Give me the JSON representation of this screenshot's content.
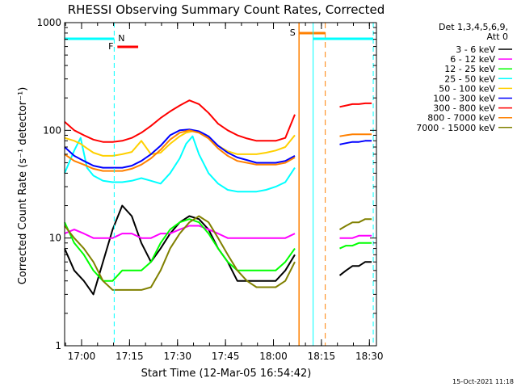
{
  "chart_data": {
    "type": "line",
    "title": "RHESSI Observing Summary Count Rates, Corrected",
    "xlabel": "Start Time (12-Mar-05 16:54:42)",
    "ylabel": "Corrected Count Rate (s⁻¹ detector⁻¹)",
    "yscale": "log",
    "ylim": [
      1,
      1000
    ],
    "ytick_labels": [
      "1",
      "10",
      "100",
      "1000"
    ],
    "xlim_minutes_from_start": [
      0,
      97.5
    ],
    "xtick_labels": [
      "17:00",
      "17:15",
      "17:30",
      "17:45",
      "18:00",
      "18:15",
      "18:30"
    ],
    "legend_header": [
      "Det 1,3,4,5,6,9,",
      "Att 0"
    ],
    "legend_position": "right",
    "footer_date": "15-Oct-2021 11:18",
    "markers": [
      {
        "label": "N",
        "kind": "night",
        "color": "#00ffff"
      },
      {
        "label": "F",
        "kind": "flare",
        "color": "#ff0000"
      },
      {
        "label": "S",
        "kind": "saa",
        "color": "#ff8000"
      }
    ],
    "series": [
      {
        "name": "3 - 6 keV",
        "color": "#000000",
        "t": [
          0,
          3,
          6,
          9,
          12,
          15,
          18,
          21,
          24,
          27,
          30,
          33,
          36,
          39,
          42,
          45,
          48,
          51,
          54,
          57,
          60,
          63,
          66,
          69,
          72,
          86,
          88,
          90,
          92,
          94,
          96
        ],
        "y": [
          8,
          5,
          4,
          3,
          6,
          12,
          20,
          16,
          9,
          6,
          8,
          11,
          14,
          16,
          15,
          12,
          8,
          6,
          4,
          4,
          4,
          4,
          4,
          5,
          7,
          4.5,
          5,
          5.5,
          5.5,
          6,
          6
        ]
      },
      {
        "name": "6 - 12 keV",
        "color": "#ff00ff",
        "t": [
          0,
          3,
          6,
          9,
          12,
          15,
          18,
          21,
          24,
          27,
          30,
          33,
          36,
          39,
          42,
          45,
          48,
          51,
          54,
          57,
          60,
          63,
          66,
          69,
          72,
          86,
          88,
          90,
          92,
          94,
          96
        ],
        "y": [
          11,
          12,
          11,
          10,
          10,
          10,
          11,
          11,
          10,
          10,
          11,
          11,
          12,
          13,
          13,
          12,
          11,
          10,
          10,
          10,
          10,
          10,
          10,
          10,
          11,
          10,
          10,
          10,
          10.5,
          10.5,
          10.5
        ]
      },
      {
        "name": "12 - 25 keV",
        "color": "#00ff00",
        "t": [
          0,
          3,
          6,
          9,
          12,
          15,
          18,
          21,
          24,
          27,
          30,
          33,
          36,
          39,
          42,
          45,
          48,
          51,
          54,
          57,
          60,
          63,
          66,
          69,
          72,
          86,
          88,
          90,
          92,
          94,
          96
        ],
        "y": [
          14,
          9,
          7,
          5,
          4,
          4,
          5,
          5,
          5,
          6,
          9,
          12,
          14,
          15,
          14,
          11,
          8,
          6,
          5,
          5,
          5,
          5,
          5,
          6,
          8,
          8,
          8.5,
          8.5,
          9,
          9,
          9
        ]
      },
      {
        "name": "25 - 50 keV",
        "color": "#00ffff",
        "t": [
          0,
          3,
          5,
          7,
          9,
          12,
          15,
          18,
          21,
          24,
          27,
          30,
          33,
          36,
          38,
          40,
          42,
          45,
          48,
          51,
          54,
          57,
          60,
          63,
          66,
          69,
          72
        ],
        "y": [
          40,
          65,
          85,
          45,
          38,
          34,
          33,
          33,
          34,
          36,
          34,
          32,
          40,
          55,
          75,
          88,
          60,
          40,
          32,
          28,
          27,
          27,
          27,
          28,
          30,
          33,
          45
        ]
      },
      {
        "name": "50 - 100 keV",
        "color": "#ffd000",
        "t": [
          0,
          3,
          5,
          7,
          9,
          12,
          15,
          18,
          21,
          24,
          27,
          30,
          33,
          36,
          38,
          40,
          42,
          45,
          48,
          51,
          54,
          57,
          60,
          63,
          66,
          69,
          72
        ],
        "y": [
          85,
          80,
          75,
          68,
          62,
          58,
          58,
          60,
          63,
          80,
          60,
          62,
          75,
          88,
          95,
          98,
          95,
          85,
          72,
          64,
          60,
          60,
          60,
          62,
          65,
          70,
          90
        ]
      },
      {
        "name": "100 - 300 keV",
        "color": "#0000ff",
        "t": [
          0,
          3,
          6,
          9,
          12,
          15,
          18,
          21,
          24,
          27,
          30,
          33,
          36,
          39,
          42,
          45,
          48,
          51,
          54,
          57,
          60,
          63,
          66,
          69,
          72,
          86,
          88,
          90,
          92,
          94,
          96
        ],
        "y": [
          70,
          58,
          52,
          47,
          45,
          45,
          45,
          47,
          52,
          60,
          72,
          90,
          100,
          102,
          98,
          88,
          72,
          62,
          56,
          53,
          50,
          50,
          50,
          52,
          58,
          74,
          76,
          78,
          78,
          80,
          80
        ]
      },
      {
        "name": "300 - 800 keV",
        "color": "#ff0000",
        "t": [
          0,
          3,
          6,
          9,
          12,
          15,
          18,
          21,
          24,
          27,
          30,
          33,
          36,
          39,
          42,
          45,
          48,
          51,
          54,
          57,
          60,
          63,
          66,
          69,
          72,
          86,
          88,
          90,
          92,
          94,
          96
        ],
        "y": [
          120,
          100,
          90,
          82,
          78,
          78,
          80,
          85,
          95,
          110,
          130,
          150,
          170,
          190,
          175,
          145,
          115,
          100,
          90,
          84,
          80,
          80,
          80,
          85,
          140,
          165,
          170,
          175,
          175,
          178,
          178
        ]
      },
      {
        "name": "800 - 7000 keV",
        "color": "#ff8000",
        "t": [
          0,
          3,
          6,
          9,
          12,
          15,
          18,
          21,
          24,
          27,
          30,
          33,
          36,
          39,
          42,
          45,
          48,
          51,
          54,
          57,
          60,
          63,
          66,
          69,
          72,
          86,
          88,
          90,
          92,
          94,
          96
        ],
        "y": [
          60,
          52,
          48,
          44,
          42,
          42,
          42,
          44,
          48,
          55,
          66,
          82,
          95,
          100,
          95,
          84,
          68,
          58,
          52,
          50,
          48,
          48,
          48,
          50,
          56,
          88,
          90,
          92,
          92,
          92,
          92
        ]
      },
      {
        "name": "7000 - 15000 keV",
        "color": "#808000",
        "t": [
          0,
          3,
          6,
          9,
          12,
          15,
          18,
          21,
          24,
          27,
          30,
          33,
          36,
          39,
          42,
          45,
          48,
          51,
          54,
          57,
          60,
          63,
          66,
          69,
          72,
          86,
          88,
          90,
          92,
          94,
          96
        ],
        "y": [
          13,
          10,
          8,
          6,
          4,
          3.3,
          3.3,
          3.3,
          3.3,
          3.5,
          5,
          8,
          11,
          14,
          16,
          14,
          10,
          7,
          5,
          4,
          3.5,
          3.5,
          3.5,
          4,
          6,
          12,
          13,
          14,
          14,
          15,
          15
        ]
      }
    ]
  }
}
